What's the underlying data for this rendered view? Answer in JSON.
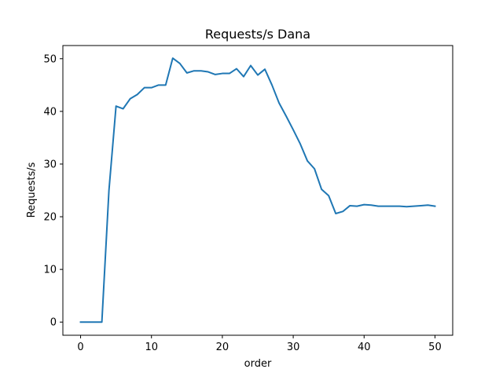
{
  "chart_data": {
    "type": "line",
    "title": "Requests/s Dana",
    "xlabel": "order",
    "ylabel": "Requests/s",
    "xlim": [
      -2.5,
      52.5
    ],
    "ylim": [
      -2.5,
      52.5
    ],
    "xticks": [
      0,
      10,
      20,
      30,
      40,
      50
    ],
    "yticks": [
      0,
      10,
      20,
      30,
      40,
      50
    ],
    "grid": false,
    "series": [
      {
        "color": "#1f77b4",
        "x": [
          0,
          1,
          2,
          3,
          4,
          5,
          6,
          7,
          8,
          9,
          10,
          11,
          12,
          13,
          14,
          15,
          16,
          17,
          18,
          19,
          20,
          21,
          22,
          23,
          24,
          25,
          26,
          27,
          28,
          29,
          30,
          31,
          32,
          33,
          34,
          35,
          36,
          37,
          38,
          39,
          40,
          41,
          42,
          43,
          44,
          45,
          46,
          47,
          48,
          49,
          50
        ],
        "y": [
          0,
          0,
          0,
          0,
          25,
          41,
          40.5,
          42.4,
          43.2,
          44.5,
          44.5,
          45,
          45,
          50.1,
          49.1,
          47.3,
          47.7,
          47.7,
          47.5,
          47,
          47.2,
          47.2,
          48.1,
          46.6,
          48.7,
          46.9,
          48,
          45,
          41.6,
          39.1,
          36.5,
          33.8,
          30.6,
          29.1,
          25.2,
          24,
          20.6,
          21,
          22.1,
          22,
          22.3,
          22.2,
          22,
          22,
          22,
          22,
          21.9,
          22,
          22.1,
          22.2,
          22
        ]
      }
    ]
  }
}
